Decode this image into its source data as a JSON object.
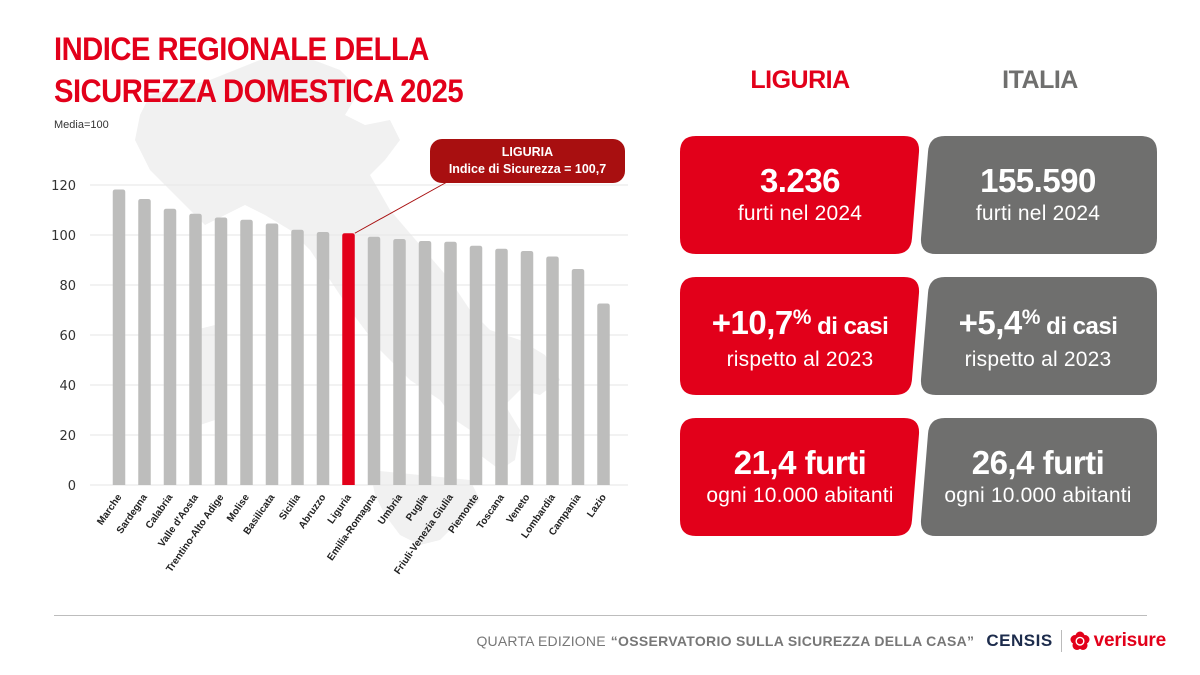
{
  "title_line1": "INDICE REGIONALE DELLA",
  "title_line2": "SICUREZZA DOMESTICA 2025",
  "subtitle": "Media=100",
  "callout": {
    "line1": "LIGURIA",
    "line2": "Indice di Sicurezza = 100,7",
    "region": "Liguria"
  },
  "colors": {
    "brand_red": "#e2001a",
    "callout_red": "#a80f10",
    "bar_gray": "#bdbdbc",
    "card_gray": "#6f6f6e"
  },
  "chart_data": {
    "type": "bar",
    "title": "Indice regionale della sicurezza domestica 2025",
    "ylabel": "Media=100",
    "xlabel": "",
    "ylim": [
      0,
      120
    ],
    "yticks": [
      0,
      20,
      40,
      60,
      80,
      100,
      120
    ],
    "grid": true,
    "highlight": "Liguria",
    "categories": [
      "Marche",
      "Sardegna",
      "Calabria",
      "Valle d'Aosta",
      "Trentino-Alto Adige",
      "Molise",
      "Basilicata",
      "Sicilia",
      "Abruzzo",
      "Liguria",
      "Emilia-Romagna",
      "Umbria",
      "Puglia",
      "Friuli-Venezia Giulia",
      "Piemonte",
      "Toscana",
      "Veneto",
      "Lombardia",
      "Campania",
      "Lazio"
    ],
    "values": [
      118.2,
      114.4,
      110.5,
      108.5,
      107.0,
      106.1,
      104.6,
      102.1,
      101.2,
      100.7,
      99.3,
      98.4,
      97.6,
      97.3,
      95.7,
      94.5,
      93.6,
      91.4,
      86.4,
      72.6
    ]
  },
  "comparison": {
    "liguria": {
      "heading": "LIGURIA",
      "cards": [
        {
          "big": "3.236",
          "sup": "",
          "unit": "",
          "small": "furti nel 2024"
        },
        {
          "big": "+10,7",
          "sup": "%",
          "unit": " di casi",
          "small": "rispetto al 2023"
        },
        {
          "big": "21,4",
          "sup": "",
          "unit": " furti",
          "small": "ogni 10.000 abitanti"
        }
      ]
    },
    "italia": {
      "heading": "ITALIA",
      "cards": [
        {
          "big": "155.590",
          "sup": "",
          "unit": "",
          "small": "furti nel 2024"
        },
        {
          "big": "+5,4",
          "sup": "%",
          "unit": " di casi",
          "small": "rispetto al 2023"
        },
        {
          "big": "26,4",
          "sup": "",
          "unit": " furti",
          "small": "ogni 10.000 abitanti"
        }
      ]
    }
  },
  "footer": {
    "edition": "QUARTA EDIZIONE",
    "observatory": "“OSSERVATORIO SULLA SICUREZZA DELLA CASA”",
    "censis": "CENSIS",
    "verisure": "verisure"
  }
}
